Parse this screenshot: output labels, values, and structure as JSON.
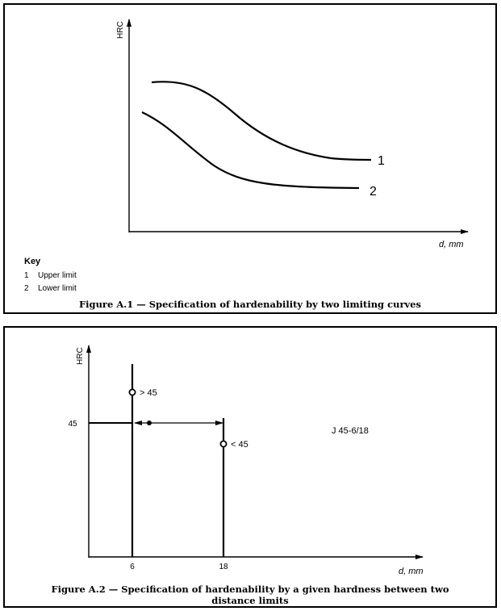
{
  "figure1": {
    "y_axis_label": "HRC",
    "x_axis_label": "d,  mm",
    "curve_labels": [
      "1",
      "2"
    ],
    "key": {
      "title": "Key",
      "items": [
        {
          "num": "1",
          "label": "Upper limit"
        },
        {
          "num": "2",
          "label": "Lower limit"
        }
      ]
    },
    "caption": "Figure A.1 — Specification of hardenability by two limiting curves"
  },
  "figure2": {
    "y_axis_label": "HRC",
    "x_axis_label": "d,  mm",
    "y_tick": "45",
    "x_ticks": [
      "6",
      "18"
    ],
    "upper_point_label": "> 45",
    "lower_point_label": "< 45",
    "designation": "J 45-6/18",
    "caption_line1": "Figure A.2 — Specification of hardenability by a given hardness between two",
    "caption_line2": "distance limits"
  }
}
